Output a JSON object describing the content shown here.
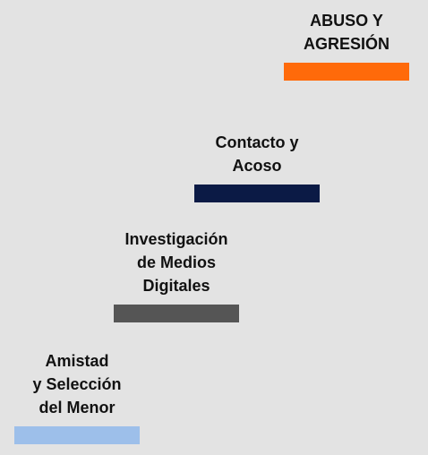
{
  "stages": [
    {
      "label": "Amistad\ny Selección\ndel Menor",
      "color": "#9dbfea"
    },
    {
      "label": "Investigación\nde Medios\nDigitales",
      "color": "#555555"
    },
    {
      "label": "Contacto y\nAcoso",
      "color": "#0b1a45"
    },
    {
      "label": "ABUSO Y\nAGRESIÓN",
      "color": "#ff6a0a"
    }
  ]
}
